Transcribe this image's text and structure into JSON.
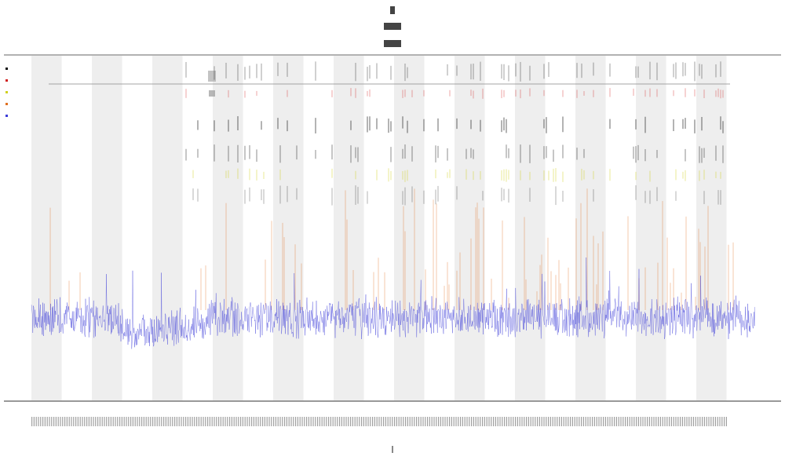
{
  "chart_data": {
    "type": "line",
    "title": "",
    "xlabel": "",
    "ylabel": "",
    "band_count": 12,
    "band_color": "#eeeeee",
    "grid": false,
    "legend": "top-left",
    "series": [
      {
        "color": "#3b3bd8",
        "role": "main-trace"
      },
      {
        "color": "#e07020",
        "role": "spikes"
      },
      {
        "color": "#d0d020",
        "role": "markers-yellow"
      },
      {
        "color": "#111111",
        "role": "markers-black"
      },
      {
        "color": "#d02020",
        "role": "markers-red"
      }
    ]
  }
}
